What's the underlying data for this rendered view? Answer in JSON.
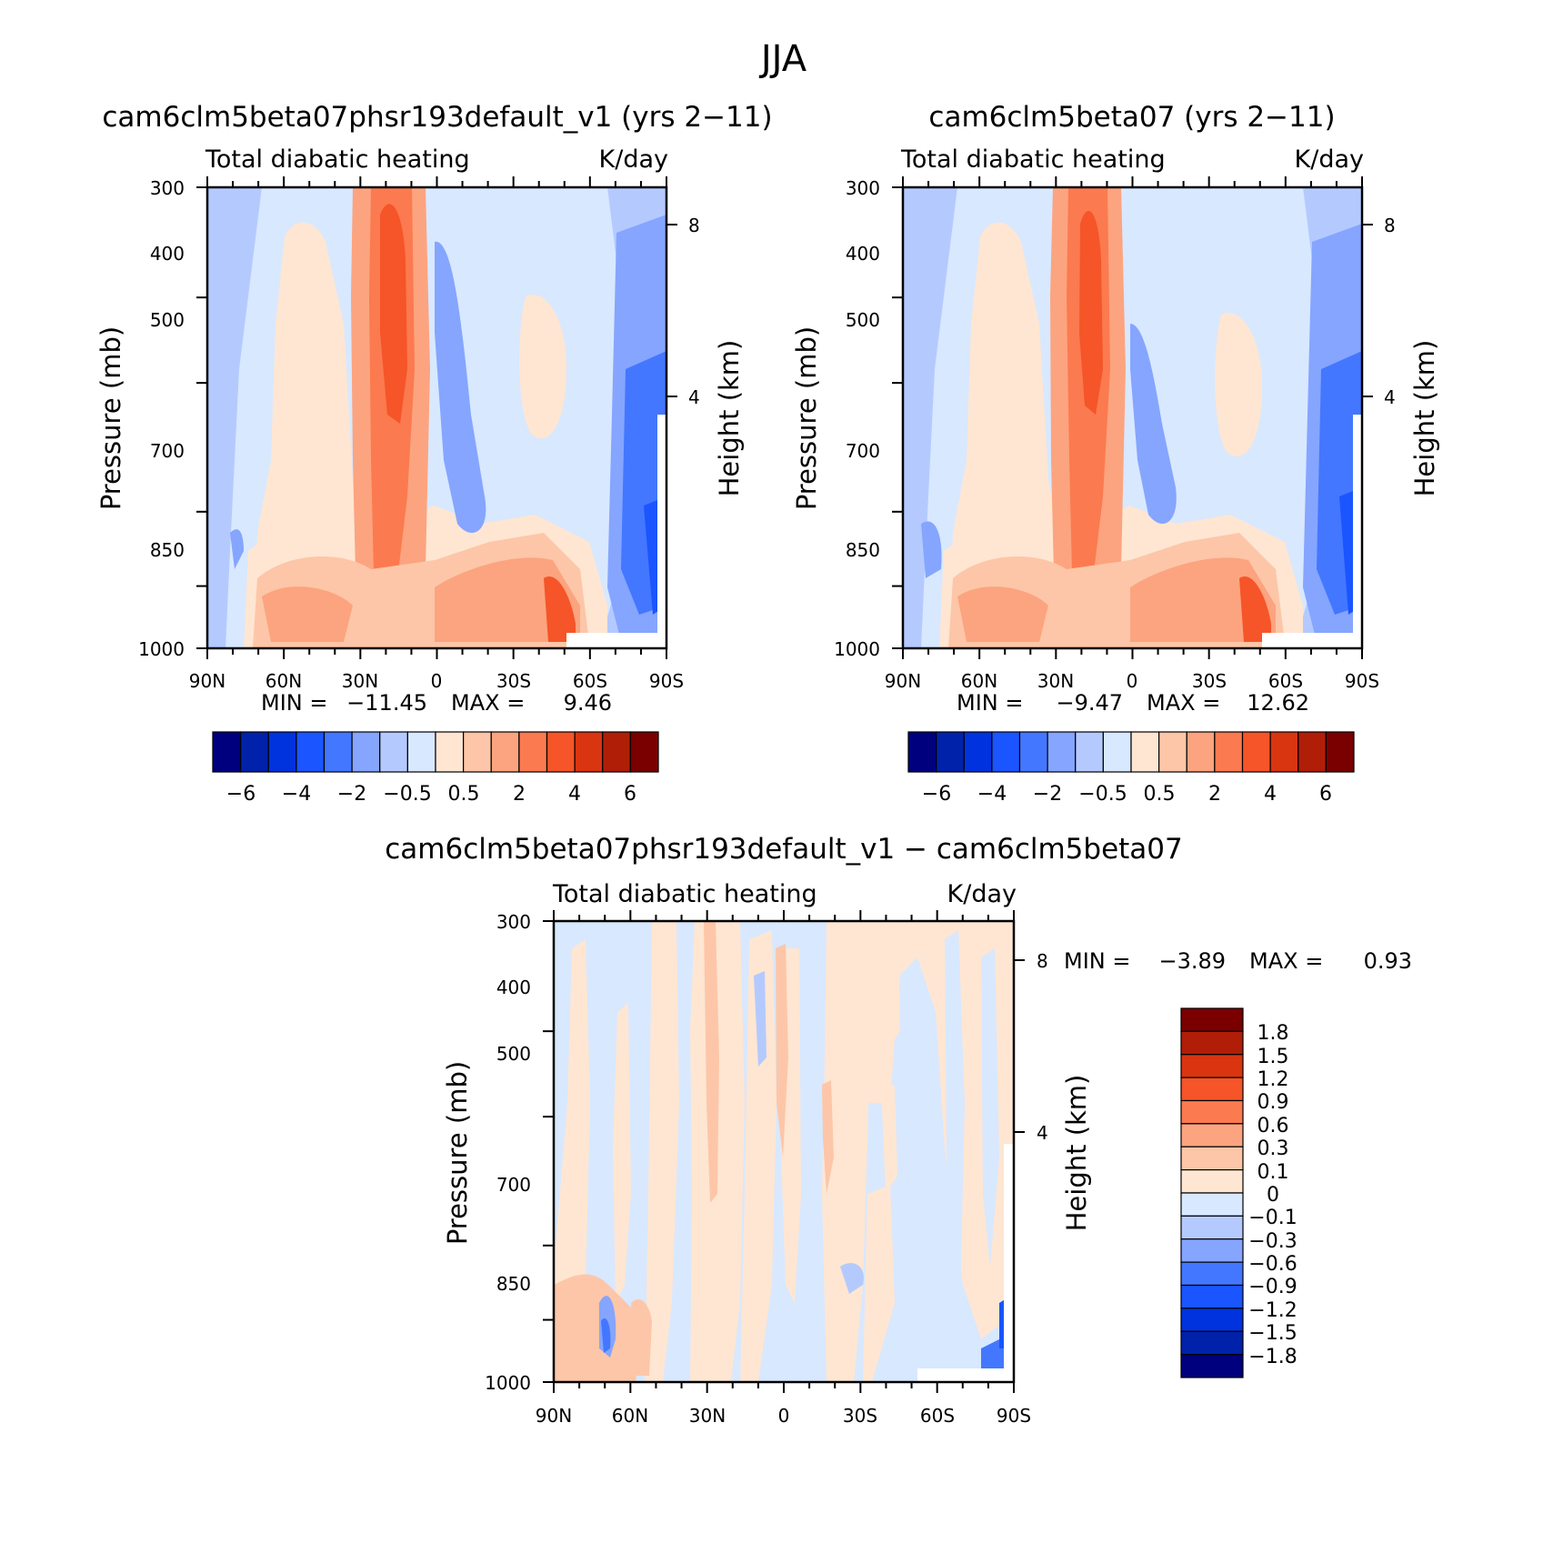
{
  "figure_title": "JJA",
  "units_label": "K/day",
  "field_label": "Total diabatic heating",
  "y_axis_label": "Pressure (mb)",
  "y2_axis_label": "Height (km)",
  "stat_min_label": "MIN =",
  "stat_max_label": "MAX =",
  "chart_data": [
    {
      "id": "p1",
      "type": "heatmap",
      "title": "cam6clm5beta07phsr193default_v1 (yrs 2-11)",
      "subtitle": "Total diabatic heating",
      "units": "K/day",
      "xlabel": "",
      "ylabel": "Pressure (mb)",
      "y2label": "Height (km)",
      "x_ticks": [
        "90N",
        "60N",
        "30N",
        "0",
        "30S",
        "60S",
        "90S"
      ],
      "y_ticks": [
        "300",
        "400",
        "500",
        "700",
        "850",
        "1000"
      ],
      "y2_ticks": [
        "8",
        "4"
      ],
      "min_value": "-11.45",
      "max_value": "9.46",
      "colorbar": {
        "orientation": "horizontal",
        "levels": [
          "-6",
          "-4",
          "-2",
          "-0.5",
          "0.5",
          "2",
          "4",
          "6"
        ],
        "colors": [
          "#00007f",
          "#0022aa",
          "#0033dd",
          "#1a55ff",
          "#4477ff",
          "#85a5ff",
          "#b4caff",
          "#d8e8ff",
          "#fee6d2",
          "#fdc6a8",
          "#fca47f",
          "#fc7a4f",
          "#f55528",
          "#d93510",
          "#b01e08",
          "#7a0000"
        ]
      }
    },
    {
      "id": "p2",
      "type": "heatmap",
      "title": "cam6clm5beta07 (yrs 2-11)",
      "subtitle": "Total diabatic heating",
      "units": "K/day",
      "xlabel": "",
      "ylabel": "Pressure (mb)",
      "y2label": "Height (km)",
      "x_ticks": [
        "90N",
        "60N",
        "30N",
        "0",
        "30S",
        "60S",
        "90S"
      ],
      "y_ticks": [
        "300",
        "400",
        "500",
        "700",
        "850",
        "1000"
      ],
      "y2_ticks": [
        "8",
        "4"
      ],
      "min_value": "-9.47",
      "max_value": "12.62",
      "colorbar": {
        "orientation": "horizontal",
        "levels": [
          "-6",
          "-4",
          "-2",
          "-0.5",
          "0.5",
          "2",
          "4",
          "6"
        ],
        "colors": [
          "#00007f",
          "#0022aa",
          "#0033dd",
          "#1a55ff",
          "#4477ff",
          "#85a5ff",
          "#b4caff",
          "#d8e8ff",
          "#fee6d2",
          "#fdc6a8",
          "#fca47f",
          "#fc7a4f",
          "#f55528",
          "#d93510",
          "#b01e08",
          "#7a0000"
        ]
      }
    },
    {
      "id": "p3",
      "type": "heatmap",
      "title": "cam6clm5beta07phsr193default_v1 - cam6clm5beta07",
      "subtitle": "Total diabatic heating",
      "units": "K/day",
      "xlabel": "",
      "ylabel": "Pressure (mb)",
      "y2label": "Height (km)",
      "x_ticks": [
        "90N",
        "60N",
        "30N",
        "0",
        "30S",
        "60S",
        "90S"
      ],
      "y_ticks": [
        "300",
        "400",
        "500",
        "700",
        "850",
        "1000"
      ],
      "y2_ticks": [
        "8",
        "4"
      ],
      "min_value": "-3.89",
      "max_value": "0.93",
      "colorbar": {
        "orientation": "vertical",
        "levels": [
          "1.8",
          "1.5",
          "1.2",
          "0.9",
          "0.6",
          "0.3",
          "0.1",
          "0",
          "-0.1",
          "-0.3",
          "-0.6",
          "-0.9",
          "-1.2",
          "-1.5",
          "-1.8"
        ],
        "colors": [
          "#7a0000",
          "#b01e08",
          "#d93510",
          "#f55528",
          "#fc7a4f",
          "#fca47f",
          "#fdc6a8",
          "#fee6d2",
          "#d8e8ff",
          "#b4caff",
          "#85a5ff",
          "#4477ff",
          "#1a55ff",
          "#0033dd",
          "#0022aa",
          "#00007f"
        ]
      }
    }
  ]
}
